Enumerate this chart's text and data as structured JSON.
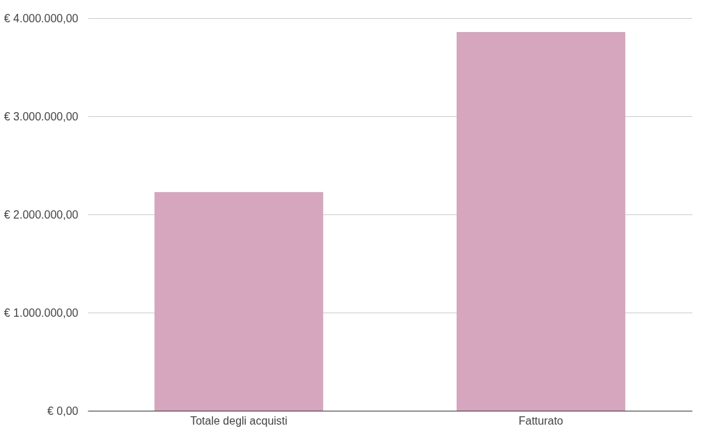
{
  "chart_data": {
    "type": "bar",
    "categories": [
      "Totale degli acquisti",
      "Fatturato"
    ],
    "series": [
      {
        "color": "#d5a6bd",
        "values": [
          2230000,
          3860000
        ]
      }
    ],
    "ylim": [
      0,
      4000000
    ],
    "yticks": [
      {
        "value": 0,
        "label": "€ 0,00"
      },
      {
        "value": 1000000,
        "label": "€ 1.000.000,00"
      },
      {
        "value": 2000000,
        "label": "€ 2.000.000,00"
      },
      {
        "value": 3000000,
        "label": "€ 3.000.000,00"
      },
      {
        "value": 4000000,
        "label": "€ 4.000.000,00"
      }
    ],
    "grid": "y",
    "legend": false
  }
}
